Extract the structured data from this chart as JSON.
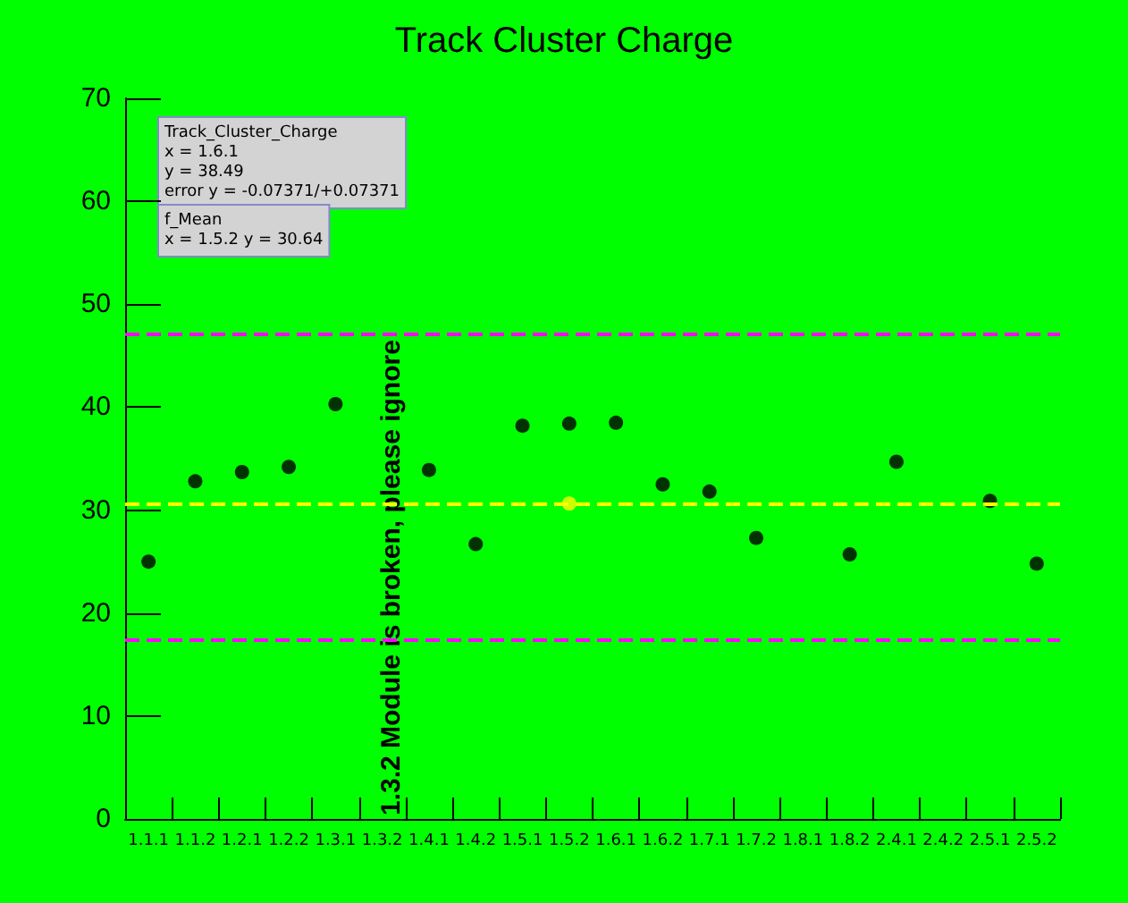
{
  "chart_data": {
    "type": "scatter",
    "title": "Track Cluster Charge",
    "categories": [
      "1.1.1",
      "1.1.2",
      "1.2.1",
      "1.2.2",
      "1.3.1",
      "1.3.2",
      "1.4.1",
      "1.4.2",
      "1.5.1",
      "1.5.2",
      "1.6.1",
      "1.6.2",
      "1.7.1",
      "1.7.2",
      "1.8.1",
      "1.8.2",
      "2.4.1",
      "2.4.2",
      "2.5.1",
      "2.5.2"
    ],
    "series": [
      {
        "color": "#000000",
        "marker": "circle",
        "values": [
          25,
          32.8,
          33.7,
          34.2,
          40.3,
          null,
          33.9,
          26.7,
          38.2,
          38.4,
          38.49,
          32.5,
          31.8,
          27.3,
          null,
          25.7,
          34.7,
          null,
          30.9,
          24.8
        ]
      },
      {
        "color": "#ffff00",
        "marker": "circle",
        "values": [
          null,
          null,
          null,
          null,
          null,
          null,
          null,
          null,
          null,
          30.64,
          null,
          null,
          null,
          null,
          null,
          null,
          null,
          null,
          null,
          null
        ]
      }
    ],
    "ylim": [
      0,
      70
    ],
    "yticks": [
      0,
      10,
      20,
      30,
      40,
      50,
      60,
      70
    ],
    "grid": false,
    "ref_lines": [
      {
        "axis": "y",
        "value": 47.2,
        "color": "#ff00ff",
        "line_style": "dashed"
      },
      {
        "axis": "y",
        "value": 30.64,
        "color": "#ffff00",
        "line_style": "dashed"
      },
      {
        "axis": "y",
        "value": 17.4,
        "color": "#ff00ff",
        "line_style": "dashed"
      }
    ],
    "annotations": [
      "Track_Cluster_Charge\nx = 1.6.1\ny = 38.49\nerror y = -0.07371/+0.07371",
      "f_Mean\nx = 1.5.2 y = 30.64",
      "1.3.2 Module is broken, please ignore"
    ]
  }
}
